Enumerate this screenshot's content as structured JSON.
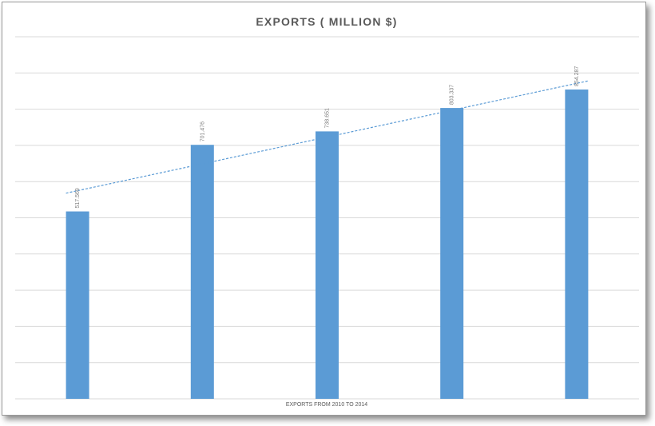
{
  "colors": {
    "bar": "#5b9bd5",
    "trendline": "#5b9bd5",
    "grid": "#d9d9d9",
    "title": "#595959"
  },
  "chart_data": {
    "type": "bar",
    "title": "EXPORTS ( MILLION $)",
    "xlabel": "EXPORTS FROM 2010 TO 2014",
    "ylabel": "",
    "categories": [
      "",
      "",
      "",
      "",
      ""
    ],
    "series": [
      {
        "values": [
          517.569,
          701.476,
          738.651,
          803.337,
          854.287
        ],
        "data_labels": [
          "517.569",
          "701.476",
          "738.651",
          "803.337",
          "854.287"
        ]
      }
    ],
    "trendline": "linear",
    "ylim": [
      0,
      1000
    ],
    "gridlines": 10,
    "grid": true,
    "legend": "none"
  }
}
